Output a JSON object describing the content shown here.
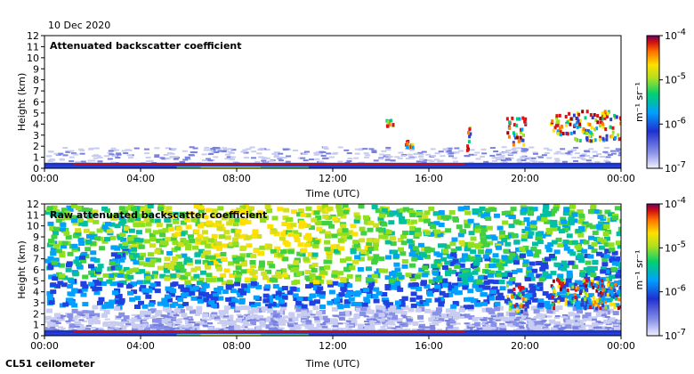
{
  "date_label": "10 Dec 2020",
  "instrument_label": "CL51 ceilometer",
  "colors": {
    "cloud": [
      "#3040c0",
      "#00a0ff",
      "#00d080",
      "#a0e020",
      "#ffe000",
      "#ff8000",
      "#e01010",
      "#a00000"
    ],
    "noise_low": "#c8ccf0",
    "noise_mid": "#5060e0"
  },
  "chart_data": [
    {
      "type": "heatmap",
      "title": "Attenuated backscatter coefficient",
      "xlabel": "Time (UTC)",
      "ylabel": "Height (km)",
      "x_ticks": [
        "00:00",
        "04:00",
        "08:00",
        "12:00",
        "16:00",
        "20:00",
        "00:00"
      ],
      "x_range_hours": [
        0,
        24
      ],
      "y_ticks": [
        "0",
        "1",
        "2",
        "3",
        "4",
        "5",
        "6",
        "7",
        "8",
        "9",
        "10",
        "11",
        "12"
      ],
      "ylim": [
        0,
        12
      ],
      "colorbar": {
        "label": "m⁻¹ sr⁻¹",
        "ticks": [
          {
            "base": "10",
            "exp": "-4",
            "value": 0.0001
          },
          {
            "base": "10",
            "exp": "-5",
            "value": 1e-05
          },
          {
            "base": "10",
            "exp": "-6",
            "value": 1e-06
          },
          {
            "base": "10",
            "exp": "-7",
            "value": 1e-07
          }
        ],
        "scale": "log"
      },
      "features": [
        {
          "kind": "surface_layer",
          "t_start_h": 0,
          "t_end_h": 24,
          "top_km": 0.5
        },
        {
          "kind": "cloud_patch",
          "t_start_h": 14.2,
          "t_end_h": 14.5,
          "base_km": 3.9,
          "top_km": 4.5
        },
        {
          "kind": "cloud_patch",
          "t_start_h": 15.0,
          "t_end_h": 15.3,
          "base_km": 2.0,
          "top_km": 2.6
        },
        {
          "kind": "cloud_patch",
          "t_start_h": 17.5,
          "t_end_h": 17.7,
          "base_km": 1.5,
          "top_km": 3.8
        },
        {
          "kind": "cloud_patch",
          "t_start_h": 19.2,
          "t_end_h": 20.0,
          "base_km": 2.2,
          "top_km": 4.8
        },
        {
          "kind": "cloud_patch",
          "t_start_h": 21.0,
          "t_end_h": 24.0,
          "base_km": 2.6,
          "top_km": 5.3
        }
      ]
    },
    {
      "type": "heatmap",
      "title": "Raw attenuated backscatter coefficient",
      "xlabel": "Time (UTC)",
      "ylabel": "Height (km)",
      "x_ticks": [
        "00:00",
        "04:00",
        "08:00",
        "12:00",
        "16:00",
        "20:00",
        "00:00"
      ],
      "x_range_hours": [
        0,
        24
      ],
      "y_ticks": [
        "0",
        "1",
        "2",
        "3",
        "4",
        "5",
        "6",
        "7",
        "8",
        "9",
        "10",
        "11",
        "12"
      ],
      "ylim": [
        0,
        12
      ],
      "colorbar": {
        "label": "m⁻¹ sr⁻¹",
        "ticks": [
          {
            "base": "10",
            "exp": "-4",
            "value": 0.0001
          },
          {
            "base": "10",
            "exp": "-5",
            "value": 1e-05
          },
          {
            "base": "10",
            "exp": "-6",
            "value": 1e-06
          },
          {
            "base": "10",
            "exp": "-7",
            "value": 1e-07
          }
        ],
        "scale": "log"
      },
      "features": [
        {
          "kind": "noise_field",
          "t_start_h": 0,
          "t_end_h": 24,
          "base_km": 3,
          "top_km": 12
        },
        {
          "kind": "surface_layer",
          "t_start_h": 0,
          "t_end_h": 24,
          "top_km": 0.5
        },
        {
          "kind": "cloud_patch",
          "t_start_h": 19.2,
          "t_end_h": 20.0,
          "base_km": 2.2,
          "top_km": 4.8
        },
        {
          "kind": "cloud_patch",
          "t_start_h": 21.0,
          "t_end_h": 24.0,
          "base_km": 2.6,
          "top_km": 5.3
        }
      ]
    }
  ]
}
